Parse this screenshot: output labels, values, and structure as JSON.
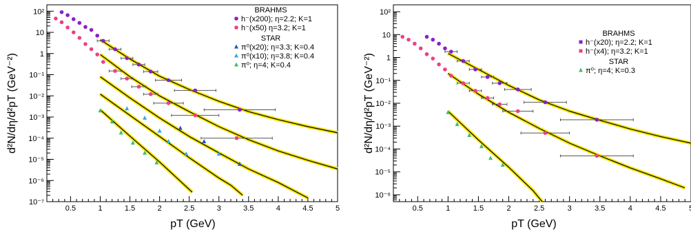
{
  "chart_data": [
    {
      "type": "scatter",
      "xlabel": "p_T (GeV)",
      "ylabel": "d²N/dη/d²p_T (GeV⁻²)",
      "xlim": [
        0.1,
        5.0
      ],
      "ylim": [
        1e-07,
        200
      ],
      "yscale": "log",
      "x_ticks": [
        "0.5",
        "1",
        "1.5",
        "2",
        "2.5",
        "3",
        "3.5",
        "4",
        "4.5",
        "5"
      ],
      "y_ticks": [
        "10⁻⁷",
        "10⁻⁶",
        "10⁻⁵",
        "10⁻⁴",
        "10⁻³",
        "10⁻²",
        "10⁻¹",
        "1",
        "10",
        "10²"
      ],
      "legend": {
        "position": "top-right",
        "groups": [
          {
            "title": "BRAHMS",
            "entries": [
              {
                "label": "h⁻(x200); η=2.2; K=1",
                "color": "#8b1fc9",
                "marker": "circle"
              },
              {
                "label": "h⁻(x50) η=3.2; K=1",
                "color": "#ee3f86",
                "marker": "circle"
              }
            ]
          },
          {
            "title": "STAR",
            "entries": [
              {
                "label": "π⁰(x20); η=3.3; K=0.4",
                "color": "#1f55c9",
                "marker": "triangle"
              },
              {
                "label": "π⁰(x10); η=3.8; K=0.4",
                "color": "#33a9e8",
                "marker": "triangle"
              },
              {
                "label": "π⁰; η=4; K=0.4",
                "color": "#3cbf6b",
                "marker": "triangle"
              }
            ]
          }
        ]
      },
      "series": [
        {
          "color": "#8b1fc9",
          "marker": "circle",
          "x": [
            0.35,
            0.45,
            0.55,
            0.65,
            0.75,
            0.85,
            0.95,
            1.05,
            1.25,
            1.45,
            1.65,
            1.85,
            2.15,
            2.6,
            3.35
          ],
          "y": [
            90,
            65,
            42,
            28,
            18,
            13,
            7,
            4,
            1.6,
            0.6,
            0.3,
            0.14,
            0.055,
            0.018,
            0.0022
          ],
          "xerr": [
            0,
            0,
            0,
            0,
            0,
            0,
            0,
            0.1,
            0.1,
            0.1,
            0.1,
            0.12,
            0.22,
            0.35,
            0.6
          ]
        },
        {
          "color": "#ee3f86",
          "marker": "circle",
          "x": [
            0.25,
            0.35,
            0.45,
            0.55,
            0.65,
            0.75,
            0.85,
            0.95,
            1.05,
            1.25,
            1.45,
            1.65,
            1.85,
            2.15,
            2.6,
            3.3
          ],
          "y": [
            45,
            30,
            17,
            10,
            5.5,
            2.8,
            1.6,
            0.9,
            0.4,
            0.15,
            0.065,
            0.027,
            0.012,
            0.0045,
            0.0012,
            0.0001
          ],
          "xerr": [
            0,
            0,
            0,
            0,
            0,
            0,
            0,
            0,
            0,
            0.1,
            0.1,
            0.12,
            0.12,
            0.25,
            0.4,
            0.6
          ]
        },
        {
          "color": "#1f55c9",
          "marker": "triangle",
          "x": [
            2.35,
            2.75,
            3.35
          ],
          "y": [
            0.0003,
            7e-05,
            6e-06
          ],
          "xerr": [
            0,
            0,
            0
          ]
        },
        {
          "color": "#33a9e8",
          "marker": "triangle",
          "x": [
            1.45,
            1.75,
            2.0,
            2.15,
            2.45,
            3.0
          ],
          "y": [
            0.0025,
            0.0009,
            0.00022,
            7e-05,
            1.8e-05,
            1.8e-05
          ],
          "xerr": [
            0,
            0,
            0,
            0,
            0,
            0
          ]
        },
        {
          "color": "#3cbf6b",
          "marker": "triangle",
          "x": [
            1.0,
            1.2,
            1.35,
            1.55,
            1.75,
            1.95
          ],
          "y": [
            0.002,
            0.0006,
            0.00018,
            6e-05,
            2e-05,
            7e-06
          ],
          "xerr": [
            0,
            0,
            0,
            0,
            0,
            0
          ]
        }
      ],
      "curves": [
        {
          "points": [
            [
              1.0,
              4.5
            ],
            [
              1.5,
              0.55
            ],
            [
              2.0,
              0.085
            ],
            [
              2.5,
              0.02
            ],
            [
              3.0,
              0.0055
            ],
            [
              3.5,
              0.0018
            ],
            [
              4.0,
              0.00075
            ],
            [
              4.5,
              0.00035
            ],
            [
              5.0,
              0.00018
            ]
          ]
        },
        {
          "points": [
            [
              1.0,
              0.9
            ],
            [
              1.5,
              0.08
            ],
            [
              2.0,
              0.01
            ],
            [
              2.5,
              0.0018
            ],
            [
              3.0,
              0.00035
            ],
            [
              3.5,
              8.5e-05
            ],
            [
              4.0,
              2.5e-05
            ],
            [
              4.5,
              9e-06
            ],
            [
              5.0,
              3.5e-06
            ]
          ]
        },
        {
          "points": [
            [
              1.0,
              0.08
            ],
            [
              1.5,
              0.008
            ],
            [
              2.0,
              0.0009
            ],
            [
              2.5,
              0.00012
            ],
            [
              3.0,
              2e-05
            ],
            [
              3.5,
              3.5e-06
            ],
            [
              4.0,
              8e-07
            ],
            [
              4.5,
              1.5e-07
            ]
          ]
        },
        {
          "points": [
            [
              1.0,
              0.012
            ],
            [
              1.5,
              0.0012
            ],
            [
              2.0,
              0.00012
            ],
            [
              2.5,
              1.2e-05
            ],
            [
              3.0,
              1.3e-06
            ],
            [
              3.2,
              6e-07
            ],
            [
              3.4,
              2e-07
            ]
          ]
        },
        {
          "points": [
            [
              1.0,
              0.0022
            ],
            [
              1.5,
              0.000125
            ],
            [
              2.0,
              7.5e-06
            ],
            [
              2.3,
              1.25e-06
            ],
            [
              2.55,
              2.8e-07
            ]
          ]
        }
      ]
    },
    {
      "type": "scatter",
      "xlabel": "p_T (GeV)",
      "ylabel": "d²N/dη/d²p_T (GeV⁻²)",
      "xlim": [
        0.1,
        5.0
      ],
      "ylim": [
        5e-07,
        200
      ],
      "yscale": "log",
      "x_ticks": [
        "0.5",
        "1",
        "1.5",
        "2",
        "2.5",
        "3",
        "3.5",
        "4",
        "4.5",
        "5"
      ],
      "y_ticks": [
        "10⁻⁶",
        "10⁻⁵",
        "10⁻⁴",
        "10⁻³",
        "10⁻²",
        "10⁻¹",
        "1",
        "10",
        "10²"
      ],
      "legend": {
        "position": "top-right",
        "groups": [
          {
            "title": "BRAHMS",
            "entries": [
              {
                "label": "h⁻(x20); η=2.2; K=1",
                "color": "#8b1fc9",
                "marker": "square"
              },
              {
                "label": "h⁻(x4); η=3.2; K=1",
                "color": "#ee3f86",
                "marker": "square"
              }
            ]
          },
          {
            "title": "STAR",
            "entries": [
              {
                "label": "π⁰; η=4; K=0.3",
                "color": "#3cbf6b",
                "marker": "triangle"
              }
            ]
          }
        ]
      },
      "series": [
        {
          "color": "#8b1fc9",
          "marker": "circle",
          "x": [
            0.65,
            0.75,
            0.85,
            0.95,
            1.05,
            1.25,
            1.45,
            1.65,
            1.85,
            2.15,
            2.6,
            3.45
          ],
          "y": [
            8,
            6,
            4,
            2.5,
            1.8,
            0.7,
            0.3,
            0.14,
            0.075,
            0.04,
            0.011,
            0.0019
          ],
          "xerr": [
            0,
            0,
            0,
            0,
            0.1,
            0.1,
            0.1,
            0.1,
            0.12,
            0.22,
            0.35,
            0.6
          ]
        },
        {
          "color": "#ee3f86",
          "marker": "circle",
          "x": [
            0.25,
            0.35,
            0.45,
            0.55,
            0.65,
            0.75,
            0.85,
            0.95,
            1.05,
            1.25,
            1.45,
            1.65,
            1.85,
            2.15,
            2.6,
            3.45
          ],
          "y": [
            8,
            6,
            4,
            2.5,
            1.4,
            0.9,
            0.5,
            0.3,
            0.16,
            0.075,
            0.035,
            0.017,
            0.009,
            0.0045,
            0.0005,
            5e-05
          ],
          "xerr": [
            0,
            0,
            0,
            0,
            0,
            0,
            0,
            0,
            0,
            0.1,
            0.1,
            0.1,
            0.12,
            0.25,
            0.4,
            0.6
          ]
        },
        {
          "color": "#3cbf6b",
          "marker": "triangle",
          "x": [
            1.0,
            1.15,
            1.35,
            1.55,
            1.7,
            1.9
          ],
          "y": [
            0.004,
            0.0012,
            0.0004,
            0.00013,
            4e-05,
            2e-05
          ],
          "xerr": [
            0,
            0,
            0,
            0,
            0,
            0
          ]
        }
      ],
      "curves": [
        {
          "points": [
            [
              1.0,
              1.5
            ],
            [
              1.5,
              0.3
            ],
            [
              2.0,
              0.06
            ],
            [
              2.5,
              0.014
            ],
            [
              3.0,
              0.0045
            ],
            [
              3.5,
              0.0018
            ],
            [
              4.0,
              0.00075
            ],
            [
              4.5,
              0.00035
            ],
            [
              5.0,
              0.00018
            ]
          ]
        },
        {
          "points": [
            [
              1.0,
              0.2
            ],
            [
              1.5,
              0.025
            ],
            [
              2.0,
              0.004
            ],
            [
              2.5,
              0.0008
            ],
            [
              3.0,
              0.00018
            ],
            [
              3.5,
              5e-05
            ],
            [
              4.0,
              1.5e-05
            ],
            [
              4.5,
              5e-06
            ],
            [
              4.9,
              2e-06
            ]
          ]
        },
        {
          "points": [
            [
              1.0,
              0.0045
            ],
            [
              1.5,
              0.00025
            ],
            [
              2.0,
              1.6e-05
            ],
            [
              2.4,
              1.5e-06
            ],
            [
              2.55,
              4.5e-07
            ]
          ]
        }
      ]
    }
  ]
}
